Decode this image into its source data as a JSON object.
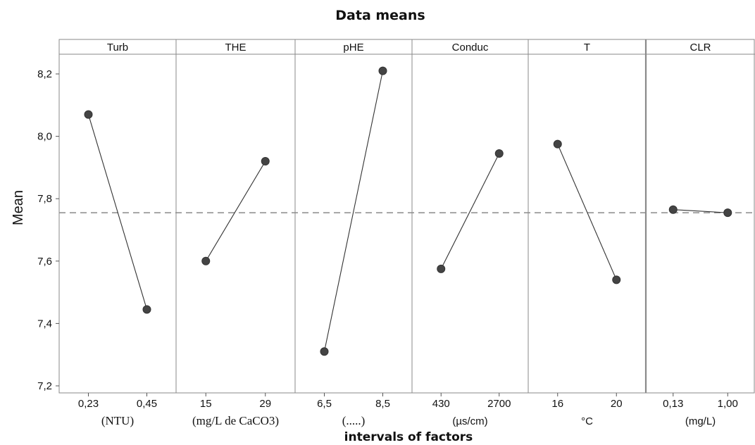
{
  "chart_data": {
    "type": "line",
    "title": "Data means",
    "xlabel": "intervals of factors",
    "ylabel": "Mean",
    "ylim": [
      7.2,
      8.3
    ],
    "yticks": [
      "7,2",
      "7,4",
      "7,6",
      "7,8",
      "8,0",
      "8,2"
    ],
    "reference_line": {
      "value": 7.755,
      "style": "dashed"
    },
    "grid": false,
    "panels": [
      {
        "label": "Turb",
        "x": [
          "0,23",
          "0,45"
        ],
        "unit": "(NTU)",
        "values": [
          8.07,
          7.445
        ]
      },
      {
        "label": "THE",
        "x": [
          "15",
          "29"
        ],
        "unit": "(mg/L de CaCO3)",
        "values": [
          7.6,
          7.92
        ]
      },
      {
        "label": "pHE",
        "x": [
          "6,5",
          "8,5"
        ],
        "unit": "(.....)",
        "values": [
          7.31,
          8.21
        ]
      },
      {
        "label": "Conduc",
        "x": [
          "430",
          "2700"
        ],
        "unit": "(µs/cm)",
        "values": [
          7.575,
          7.945
        ]
      },
      {
        "label": "T",
        "x": [
          "16",
          "20"
        ],
        "unit": "°C",
        "values": [
          7.975,
          7.54
        ]
      },
      {
        "label": "CLR",
        "x": [
          "0,13",
          "1,00"
        ],
        "unit": "(mg/L)",
        "values": [
          7.765,
          7.755
        ]
      }
    ]
  }
}
